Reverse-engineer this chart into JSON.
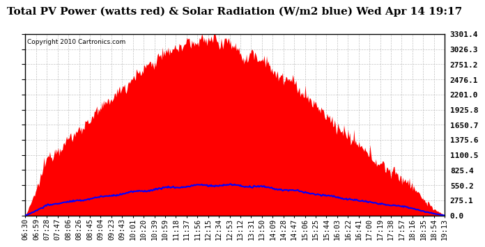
{
  "title": "Total PV Power (watts red) & Solar Radiation (W/m2 blue) Wed Apr 14 19:17",
  "copyright": "Copyright 2010 Cartronics.com",
  "background_color": "#ffffff",
  "plot_background": "#ffffff",
  "y_max": 3301.4,
  "y_min": 0.0,
  "y_ticks": [
    0.0,
    275.1,
    550.2,
    825.4,
    1100.5,
    1375.6,
    1650.7,
    1925.8,
    2201.0,
    2476.1,
    2751.2,
    3026.3,
    3301.4
  ],
  "x_labels": [
    "06:30",
    "06:59",
    "07:28",
    "07:47",
    "08:06",
    "08:26",
    "08:45",
    "09:04",
    "09:23",
    "09:43",
    "10:01",
    "10:20",
    "10:39",
    "10:59",
    "11:18",
    "11:37",
    "11:56",
    "12:15",
    "12:34",
    "12:53",
    "13:12",
    "13:31",
    "13:50",
    "14:09",
    "14:28",
    "14:47",
    "15:06",
    "15:25",
    "15:44",
    "16:03",
    "16:22",
    "16:41",
    "17:00",
    "17:19",
    "17:38",
    "17:57",
    "18:16",
    "18:35",
    "18:54",
    "19:13"
  ],
  "grid_color": "#bbbbbb",
  "title_fontsize": 11,
  "tick_fontsize": 7.5,
  "copyright_fontsize": 6.5,
  "pv_color": "#ff0000",
  "solar_color": "#0000ff",
  "border_color": "#000000",
  "solar_scale_factor": 5.5,
  "pv_peak": 3200.0,
  "solar_peak": 550.0
}
